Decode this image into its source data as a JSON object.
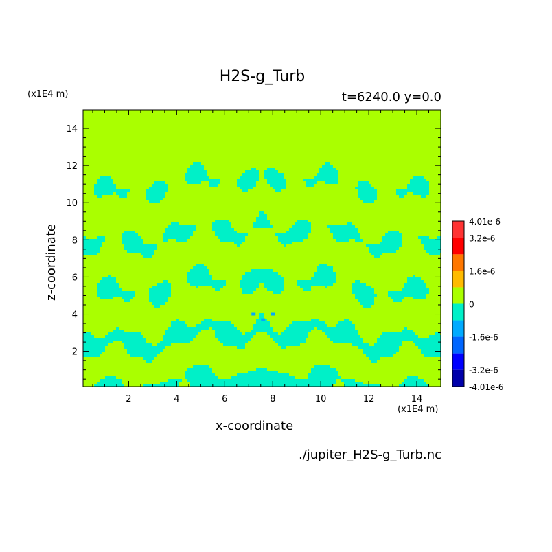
{
  "chart_data": {
    "type": "heatmap",
    "title": "H2S-g_Turb",
    "subtitle": "t=6240.0 y=0.0",
    "xlabel": "x-coordinate",
    "ylabel": "z-coordinate",
    "x_unit": "(x1E4 m)",
    "z_unit": "(x1E4 m)",
    "xlim": [
      0.1,
      15.0
    ],
    "ylim": [
      0.1,
      15.0
    ],
    "x_ticks": [
      2,
      4,
      6,
      8,
      10,
      12,
      14
    ],
    "z_ticks": [
      2,
      4,
      6,
      8,
      10,
      12,
      14
    ],
    "colorbar": {
      "min": -4.01e-06,
      "max": 4.01e-06,
      "tick_values": [
        4.01e-06,
        3.2e-06,
        1.6e-06,
        0,
        -1.6e-06,
        -3.2e-06,
        -4.01e-06
      ],
      "tick_labels": [
        "4.01e-6",
        "3.2e-6",
        "1.6e-6",
        "0",
        "-1.6e-6",
        "-3.2e-6",
        "-4.01e-6"
      ],
      "levels": [
        {
          "from": 3.2e-06,
          "to": 4.01e-06,
          "color": "#ff3333"
        },
        {
          "from": 2.4e-06,
          "to": 3.2e-06,
          "color": "#ff0000"
        },
        {
          "from": 1.6e-06,
          "to": 2.4e-06,
          "color": "#ff7700"
        },
        {
          "from": 8e-07,
          "to": 1.6e-06,
          "color": "#ffbb00"
        },
        {
          "from": 0,
          "to": 8e-07,
          "color": "#aaff00"
        },
        {
          "from": -8e-07,
          "to": 0,
          "color": "#00f0c8"
        },
        {
          "from": -1.6e-06,
          "to": -8e-07,
          "color": "#00aaff"
        },
        {
          "from": -2.4e-06,
          "to": -1.6e-06,
          "color": "#0066ff"
        },
        {
          "from": -3.2e-06,
          "to": -2.4e-06,
          "color": "#0000ff"
        },
        {
          "from": -4.01e-06,
          "to": -3.2e-06,
          "color": "#0000aa"
        }
      ]
    },
    "field": {
      "description_free_note": "",
      "background_level_color": "#aaff00",
      "negative_level_color": "#00f0c8",
      "min_level_color": "#00aaff",
      "pattern_top_z": 12.5
    }
  },
  "footer": {
    "source_file": "./jupiter_H2S-g_Turb.nc"
  }
}
